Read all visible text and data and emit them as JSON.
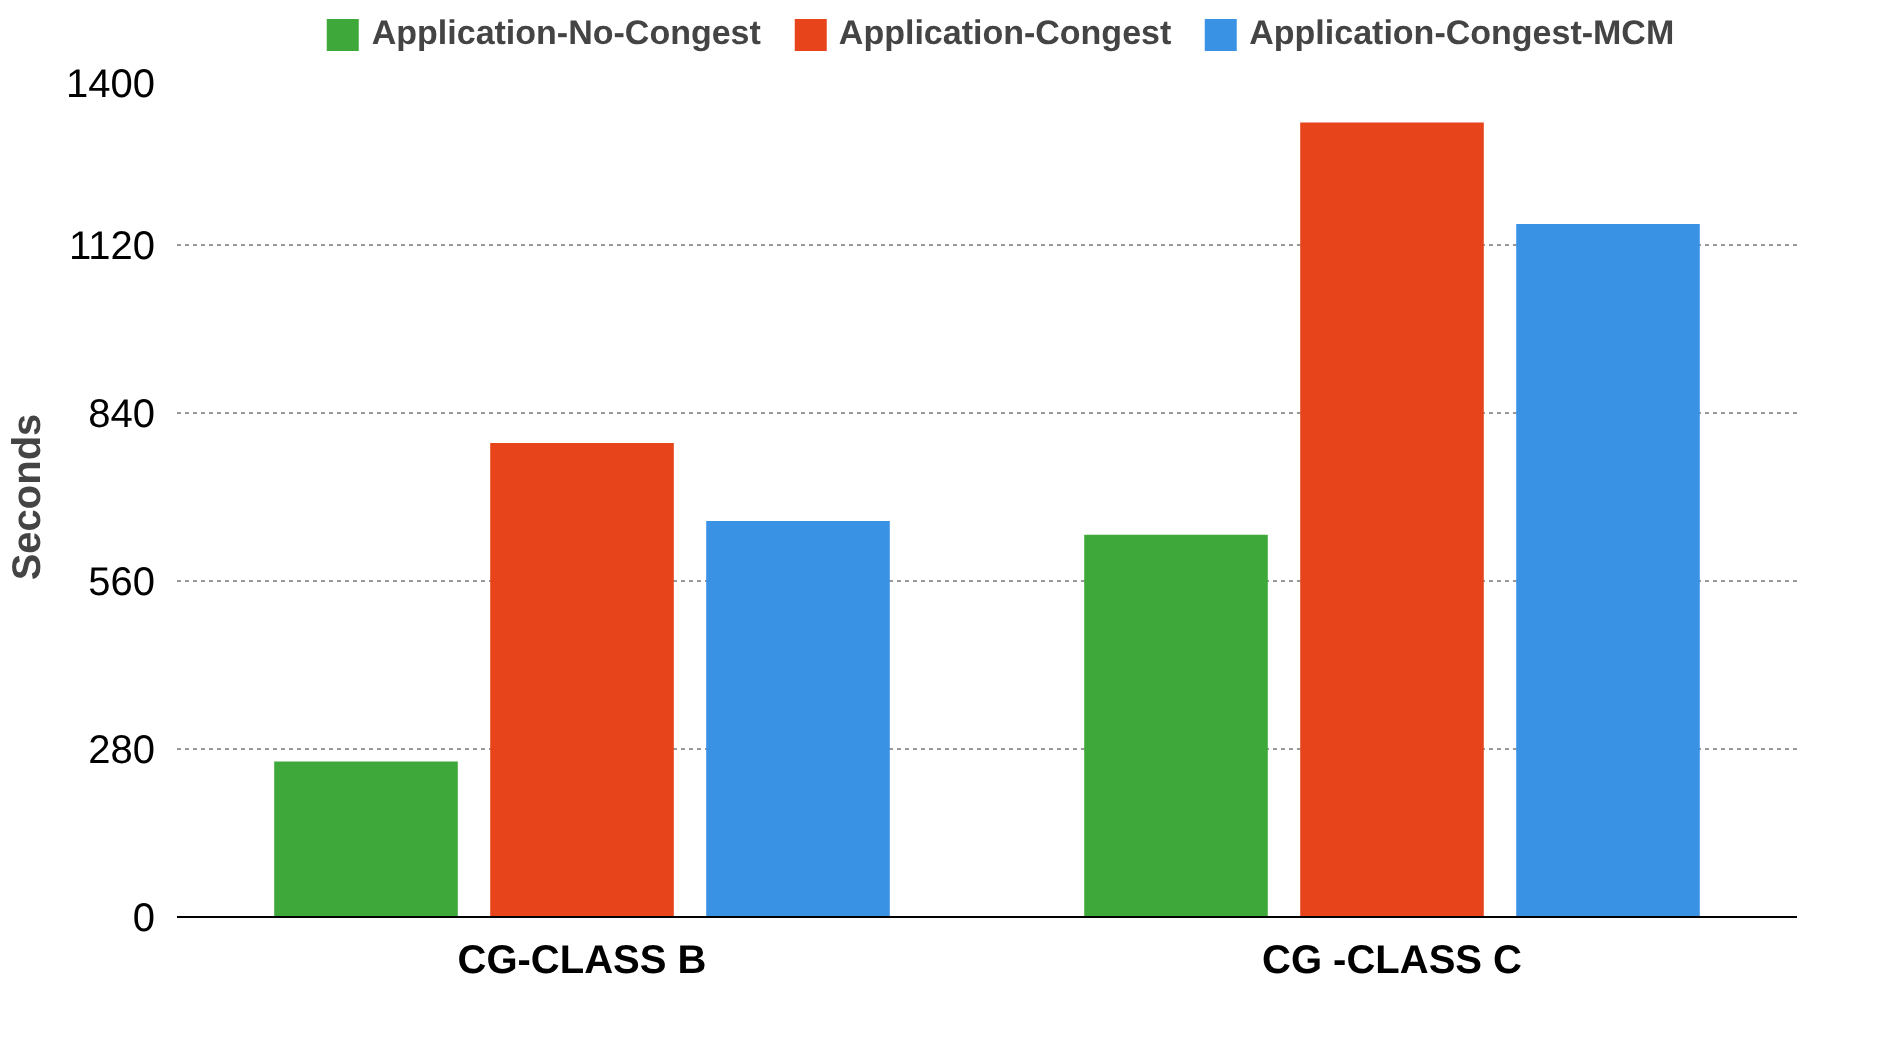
{
  "chart_data": {
    "type": "bar",
    "ylabel": "Seconds",
    "categories": [
      "CG-CLASS B",
      "CG -CLASS C"
    ],
    "series": [
      {
        "name": "Application-No-Congest",
        "color": "#3fa83a",
        "values": [
          259,
          637
        ]
      },
      {
        "name": "Application-Congest",
        "color": "#e8441c",
        "values": [
          790,
          1324
        ]
      },
      {
        "name": "Application-Congest-MCM",
        "color": "#3a92e4",
        "values": [
          660,
          1155
        ]
      }
    ],
    "ylim": [
      0,
      1400
    ],
    "yticks": [
      0,
      280,
      560,
      840,
      1120,
      1400
    ],
    "grid": "y",
    "legend": "top"
  }
}
